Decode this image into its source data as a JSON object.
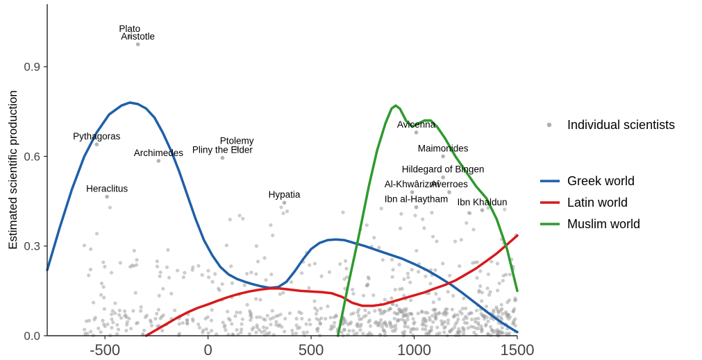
{
  "chart_data": {
    "type": "scatter",
    "title": "",
    "xlabel": "",
    "ylabel": "Estimated scientific production",
    "xlim": [
      -780,
      1500
    ],
    "ylim": [
      0,
      1.1
    ],
    "x_ticks": [
      "-500",
      "0",
      "500",
      "1000",
      "1500"
    ],
    "y_ticks": [
      "0.0",
      "0.3",
      "0.6",
      "0.9"
    ],
    "grid": false,
    "legend_position": "right",
    "point_color": "#9a9a9a",
    "scatter_series": {
      "name": "Individual scientists",
      "labeled_points": [
        {
          "name": "Plato",
          "x": -380,
          "y": 1.0
        },
        {
          "name": "Aristotle",
          "x": -340,
          "y": 0.975
        },
        {
          "name": "Pythagoras",
          "x": -540,
          "y": 0.64
        },
        {
          "name": "Archimedes",
          "x": -240,
          "y": 0.585
        },
        {
          "name": "Ptolemy",
          "x": 140,
          "y": 0.625
        },
        {
          "name": "Pliny the Elder",
          "x": 70,
          "y": 0.595
        },
        {
          "name": "Heraclitus",
          "x": -490,
          "y": 0.465
        },
        {
          "name": "Hypatia",
          "x": 370,
          "y": 0.445
        },
        {
          "name": "Avicenna",
          "x": 1010,
          "y": 0.68
        },
        {
          "name": "Maimonides",
          "x": 1140,
          "y": 0.6
        },
        {
          "name": "Hildegard of Bingen",
          "x": 1140,
          "y": 0.53
        },
        {
          "name": "Averroes",
          "x": 1170,
          "y": 0.48
        },
        {
          "name": "Al-Khwârizmî",
          "x": 990,
          "y": 0.48
        },
        {
          "name": "Ibn al-Haytham",
          "x": 1010,
          "y": 0.43
        },
        {
          "name": "Ibn Khaldun",
          "x": 1330,
          "y": 0.42
        }
      ]
    },
    "series": [
      {
        "name": "Greek world",
        "color": "#1f5fa8",
        "x": [
          -780,
          -720,
          -660,
          -600,
          -540,
          -480,
          -420,
          -380,
          -340,
          -300,
          -260,
          -220,
          -180,
          -140,
          -100,
          -60,
          -20,
          20,
          60,
          100,
          140,
          180,
          220,
          260,
          300,
          340,
          380,
          420,
          460,
          500,
          540,
          580,
          620,
          660,
          700,
          760,
          820,
          880,
          940,
          1000,
          1060,
          1120,
          1180,
          1240,
          1300,
          1360,
          1420,
          1480,
          1500
        ],
        "y": [
          0.22,
          0.36,
          0.49,
          0.6,
          0.68,
          0.74,
          0.77,
          0.78,
          0.775,
          0.76,
          0.73,
          0.68,
          0.62,
          0.55,
          0.47,
          0.39,
          0.32,
          0.27,
          0.23,
          0.205,
          0.19,
          0.18,
          0.172,
          0.165,
          0.16,
          0.163,
          0.18,
          0.215,
          0.255,
          0.29,
          0.31,
          0.32,
          0.322,
          0.32,
          0.312,
          0.3,
          0.286,
          0.272,
          0.258,
          0.24,
          0.22,
          0.196,
          0.17,
          0.14,
          0.108,
          0.076,
          0.046,
          0.02,
          0.012
        ]
      },
      {
        "name": "Latin world",
        "color": "#d7191c",
        "x": [
          -300,
          -250,
          -200,
          -150,
          -100,
          -50,
          0,
          50,
          100,
          150,
          200,
          250,
          300,
          350,
          400,
          450,
          500,
          550,
          600,
          650,
          700,
          750,
          800,
          850,
          900,
          950,
          1000,
          1050,
          1100,
          1150,
          1200,
          1250,
          1300,
          1350,
          1400,
          1450,
          1500
        ],
        "y": [
          0.0,
          0.02,
          0.04,
          0.06,
          0.078,
          0.093,
          0.105,
          0.118,
          0.13,
          0.14,
          0.148,
          0.154,
          0.158,
          0.158,
          0.154,
          0.15,
          0.148,
          0.146,
          0.142,
          0.13,
          0.11,
          0.1,
          0.1,
          0.105,
          0.115,
          0.125,
          0.135,
          0.145,
          0.158,
          0.17,
          0.185,
          0.205,
          0.225,
          0.25,
          0.275,
          0.305,
          0.335
        ]
      },
      {
        "name": "Muslim world",
        "color": "#2e9a2e",
        "x": [
          630,
          680,
          730,
          780,
          820,
          860,
          890,
          910,
          930,
          960,
          990,
          1020,
          1050,
          1080,
          1110,
          1150,
          1200,
          1250,
          1300,
          1350,
          1400,
          1450,
          1500
        ],
        "y": [
          0.0,
          0.17,
          0.33,
          0.5,
          0.62,
          0.71,
          0.76,
          0.77,
          0.76,
          0.72,
          0.7,
          0.71,
          0.72,
          0.72,
          0.7,
          0.66,
          0.6,
          0.55,
          0.5,
          0.46,
          0.39,
          0.29,
          0.15
        ]
      }
    ]
  }
}
